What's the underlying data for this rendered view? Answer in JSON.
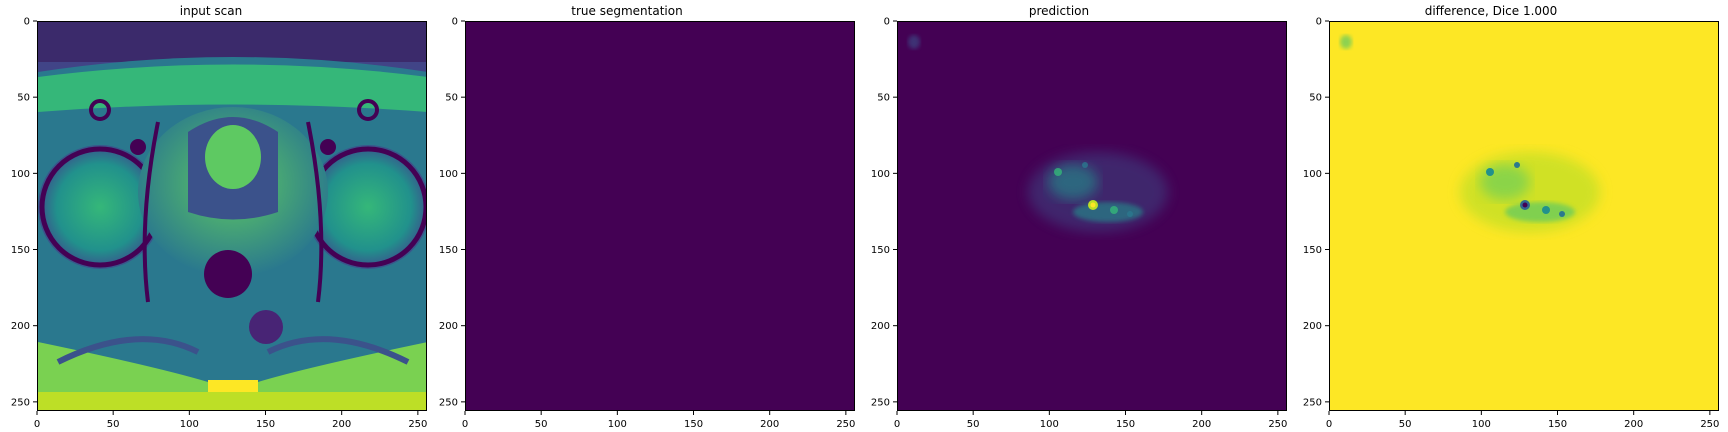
{
  "figure": {
    "panels": [
      {
        "title": "input scan"
      },
      {
        "title": "true segmentation"
      },
      {
        "title": "prediction"
      },
      {
        "title": "difference, Dice 1.000"
      }
    ]
  },
  "chart_data": [
    {
      "type": "heatmap",
      "title": "input scan",
      "colormap": "viridis",
      "image": "axial pelvic MRI scan (grayscale intensity shown in viridis)",
      "xlim": [
        0,
        256
      ],
      "ylim": [
        256,
        0
      ],
      "xticks": [
        0,
        50,
        100,
        150,
        200,
        250
      ],
      "yticks": [
        0,
        50,
        100,
        150,
        200,
        250
      ]
    },
    {
      "type": "heatmap",
      "title": "true segmentation",
      "colormap": "viridis",
      "image": "empty mask (all zeros), uniform dark purple",
      "fill_color": "#440154",
      "xlim": [
        0,
        256
      ],
      "ylim": [
        256,
        0
      ],
      "xticks": [
        0,
        50,
        100,
        150,
        200,
        250
      ],
      "yticks": [
        0,
        50,
        100,
        150,
        200,
        250
      ]
    },
    {
      "type": "heatmap",
      "title": "prediction",
      "colormap": "viridis",
      "image": "mostly zero prediction with faint speckled region around x 90-180, y 80-135 and a bright spot near (128, 120)",
      "xlim": [
        0,
        256
      ],
      "ylim": [
        256,
        0
      ],
      "xticks": [
        0,
        50,
        100,
        150,
        200,
        250
      ],
      "yticks": [
        0,
        50,
        100,
        150,
        200,
        250
      ]
    },
    {
      "type": "heatmap",
      "title": "difference, Dice 1.000",
      "colormap": "viridis",
      "image": "mostly uniform yellow with greenish/blue speckles around x 90-180, y 80-135 and dark spot near (128, 120)",
      "xlim": [
        0,
        256
      ],
      "ylim": [
        256,
        0
      ],
      "xticks": [
        0,
        50,
        100,
        150,
        200,
        250
      ],
      "yticks": [
        0,
        50,
        100,
        150,
        200,
        250
      ]
    }
  ],
  "colors": {
    "viridis_dark": "#440154",
    "viridis_yellow": "#fde725",
    "viridis_teal": "#21918c",
    "viridis_green": "#5ec962",
    "viridis_blue": "#3b528b"
  }
}
